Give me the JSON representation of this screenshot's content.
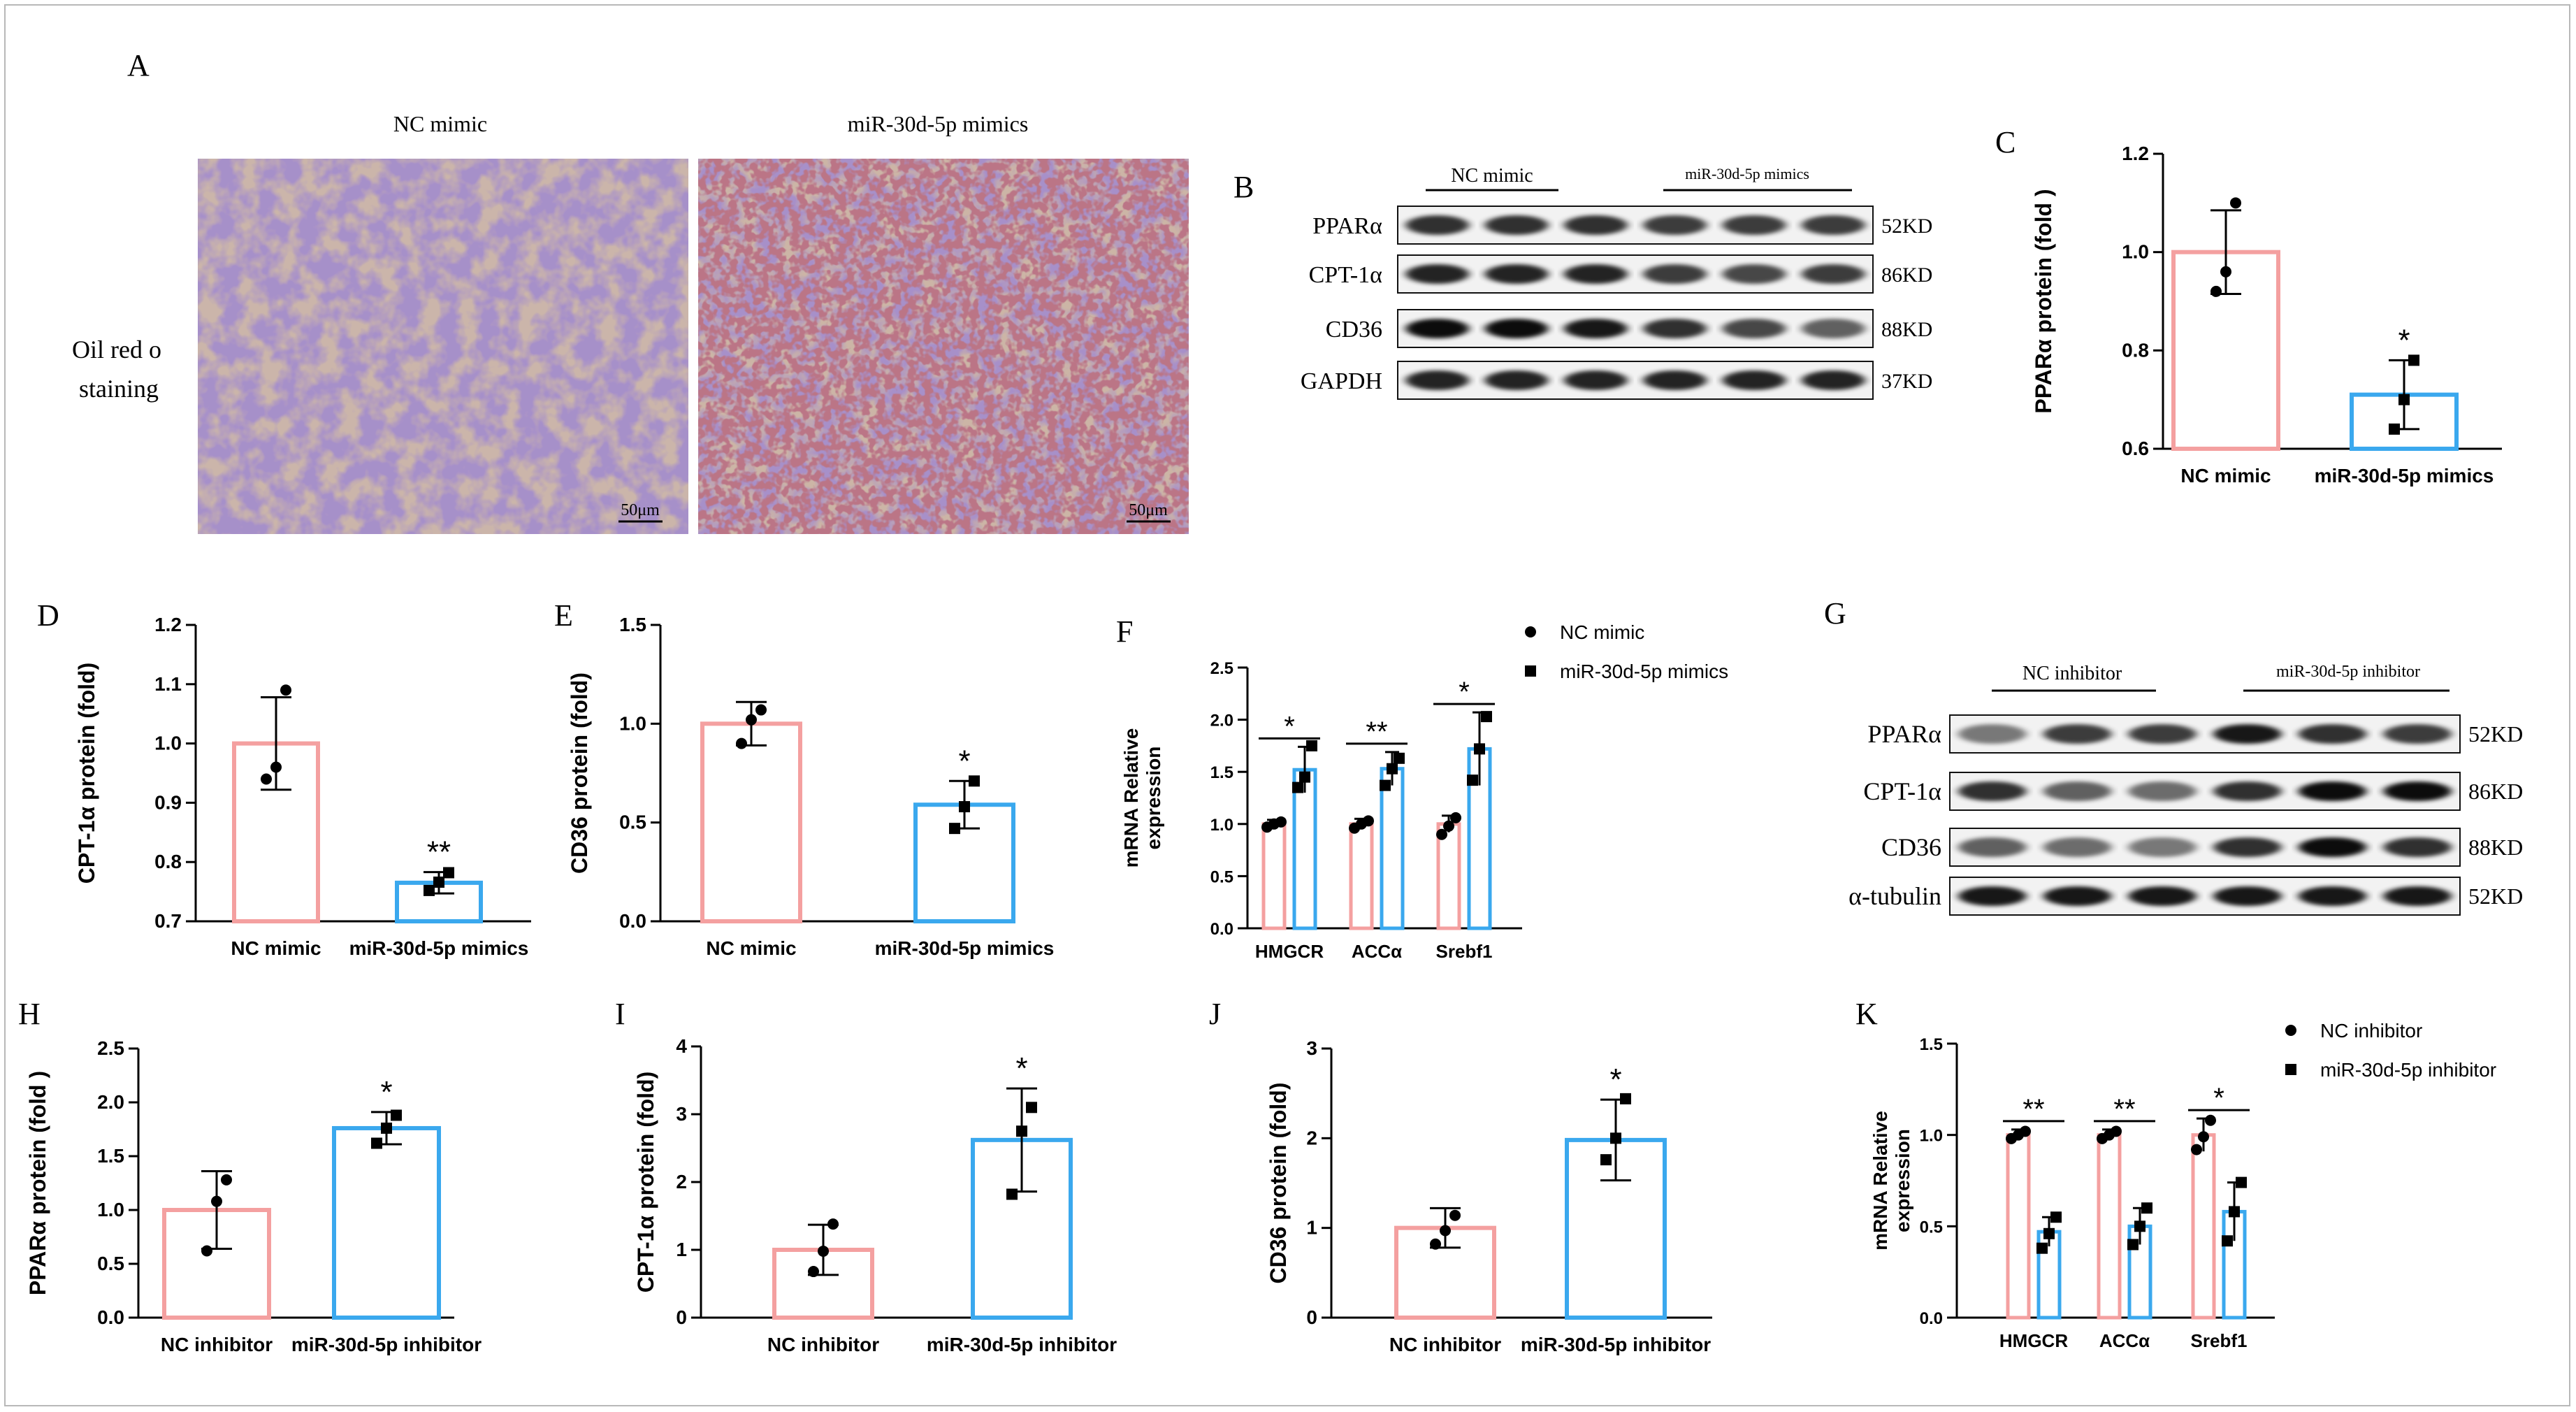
{
  "panels": {
    "A": {
      "letter": "A",
      "col_labels": [
        "NC mimic",
        "miR-30d-5p mimics"
      ],
      "row_label": [
        "Oil red o",
        "staining"
      ],
      "scale_bars": [
        "50μm",
        "50μm"
      ]
    },
    "B": {
      "letter": "B",
      "groups": [
        "NC mimic",
        "miR-30d-5p mimics"
      ],
      "bands": [
        {
          "name": "PPARα",
          "size": "52KD"
        },
        {
          "name": "CPT-1α",
          "size": "86KD"
        },
        {
          "name": "CD36",
          "size": "88KD"
        },
        {
          "name": "GAPDH",
          "size": "37KD"
        }
      ]
    },
    "G": {
      "letter": "G",
      "groups": [
        "NC inhibitor",
        "miR-30d-5p inhibitor"
      ],
      "bands": [
        {
          "name": "PPARα",
          "size": "52KD"
        },
        {
          "name": "CPT-1α",
          "size": "86KD"
        },
        {
          "name": "CD36",
          "size": "88KD"
        },
        {
          "name": "α-tubulin",
          "size": "52KD"
        }
      ]
    }
  },
  "colors": {
    "nc": "#f4a0a0",
    "treat": "#3aa8ee",
    "ink": "#000000"
  },
  "chart_data": [
    {
      "panel": "C",
      "type": "bar",
      "ylabel": "PPARα protein (fold )",
      "categories": [
        "NC mimic",
        "miR-30d-5p mimics"
      ],
      "values": [
        1.0,
        0.71
      ],
      "errors": [
        0.085,
        0.07
      ],
      "points": [
        [
          0.92,
          0.96,
          1.1
        ],
        [
          0.64,
          0.7,
          0.78
        ]
      ],
      "ylim": [
        0.6,
        1.2
      ],
      "yticks": [
        "0.6",
        "0.8",
        "1.0",
        "1.2"
      ],
      "significance": [
        "",
        "*"
      ]
    },
    {
      "panel": "D",
      "type": "bar",
      "ylabel": "CPT-1α protein (fold)",
      "categories": [
        "NC mimic",
        "miR-30d-5p mimics"
      ],
      "values": [
        1.0,
        0.765
      ],
      "errors": [
        0.078,
        0.018
      ],
      "points": [
        [
          0.94,
          0.96,
          1.09
        ],
        [
          0.752,
          0.766,
          0.782
        ]
      ],
      "ylim": [
        0.7,
        1.2
      ],
      "yticks": [
        "0.7",
        "0.8",
        "0.9",
        "1.0",
        "1.1",
        "1.2"
      ],
      "significance": [
        "",
        "**"
      ]
    },
    {
      "panel": "E",
      "type": "bar",
      "ylabel": "CD36 protein  (fold)",
      "categories": [
        "NC mimic",
        "miR-30d-5p mimics"
      ],
      "values": [
        1.0,
        0.59
      ],
      "errors": [
        0.11,
        0.12
      ],
      "points": [
        [
          0.9,
          1.02,
          1.07
        ],
        [
          0.47,
          0.58,
          0.71
        ]
      ],
      "ylim": [
        0,
        1.5
      ],
      "yticks": [
        "0.0",
        "0.5",
        "1.0",
        "1.5"
      ],
      "significance": [
        "",
        "*"
      ]
    },
    {
      "panel": "F",
      "type": "bar",
      "ylabel": "mRNA Relative expression",
      "categories": [
        "HMGCR",
        "ACCα",
        "Srebf1"
      ],
      "series": [
        {
          "name": "NC mimic",
          "values": [
            1.0,
            1.0,
            1.0
          ],
          "errors": [
            0.04,
            0.05,
            0.08
          ],
          "points": [
            [
              0.97,
              1.0,
              1.02
            ],
            [
              0.96,
              1.0,
              1.03
            ],
            [
              0.9,
              0.98,
              1.06
            ]
          ]
        },
        {
          "name": "miR-30d-5p mimics",
          "values": [
            1.52,
            1.53,
            1.72
          ],
          "errors": [
            0.22,
            0.16,
            0.35
          ],
          "points": [
            [
              1.35,
              1.45,
              1.75
            ],
            [
              1.37,
              1.53,
              1.63
            ],
            [
              1.42,
              1.72,
              2.03
            ]
          ]
        }
      ],
      "ylim": [
        0,
        2.5
      ],
      "yticks": [
        "0.0",
        "0.5",
        "1.0",
        "1.5",
        "2.0",
        "2.5"
      ],
      "significance": [
        "*",
        "**",
        "*"
      ]
    },
    {
      "panel": "H",
      "type": "bar",
      "ylabel": "PPARα protein (fold )",
      "categories": [
        "NC inhibitor",
        "miR-30d-5p inhibitor"
      ],
      "values": [
        1.0,
        1.76
      ],
      "errors": [
        0.36,
        0.15
      ],
      "points": [
        [
          0.62,
          1.08,
          1.28
        ],
        [
          1.62,
          1.76,
          1.88
        ]
      ],
      "ylim": [
        0,
        2.5
      ],
      "yticks": [
        "0.0",
        "0.5",
        "1.0",
        "1.5",
        "2.0",
        "2.5"
      ],
      "significance": [
        "",
        "*"
      ]
    },
    {
      "panel": "I",
      "type": "bar",
      "ylabel": "CPT-1α protein (fold)",
      "categories": [
        "NC inhibitor",
        "miR-30d-5p inhibitor"
      ],
      "values": [
        1.0,
        2.62
      ],
      "errors": [
        0.37,
        0.76
      ],
      "points": [
        [
          0.68,
          0.98,
          1.38
        ],
        [
          1.82,
          2.75,
          3.1
        ]
      ],
      "ylim": [
        0,
        4
      ],
      "yticks": [
        "0",
        "1",
        "2",
        "3",
        "4"
      ],
      "significance": [
        "",
        "*"
      ]
    },
    {
      "panel": "J",
      "type": "bar",
      "ylabel": "CD36 protein  (fold)",
      "categories": [
        "NC inhibitor",
        "miR-30d-5p inhibitor"
      ],
      "values": [
        1.0,
        1.98
      ],
      "errors": [
        0.22,
        0.45
      ],
      "points": [
        [
          0.82,
          0.97,
          1.14
        ],
        [
          1.76,
          2.0,
          2.44
        ]
      ],
      "ylim": [
        0,
        3
      ],
      "yticks": [
        "0",
        "1",
        "2",
        "3"
      ],
      "significance": [
        "",
        "*"
      ]
    },
    {
      "panel": "K",
      "type": "bar",
      "ylabel": "mRNA Relative expression",
      "categories": [
        "HMGCR",
        "ACCα",
        "Srebf1"
      ],
      "series": [
        {
          "name": "NC inhibitor",
          "values": [
            1.0,
            1.0,
            1.0
          ],
          "errors": [
            0.03,
            0.03,
            0.09
          ],
          "points": [
            [
              0.98,
              1.0,
              1.02
            ],
            [
              0.98,
              1.0,
              1.02
            ],
            [
              0.92,
              0.99,
              1.08
            ]
          ]
        },
        {
          "name": "miR-30d-5p inhibitor",
          "values": [
            0.47,
            0.5,
            0.58
          ],
          "errors": [
            0.08,
            0.1,
            0.16
          ],
          "points": [
            [
              0.38,
              0.46,
              0.55
            ],
            [
              0.4,
              0.5,
              0.6
            ],
            [
              0.42,
              0.58,
              0.74
            ]
          ]
        }
      ],
      "ylim": [
        0,
        1.5
      ],
      "yticks": [
        "0.0",
        "0.5",
        "1.0",
        "1.5"
      ],
      "significance": [
        "**",
        "**",
        "*"
      ]
    }
  ]
}
